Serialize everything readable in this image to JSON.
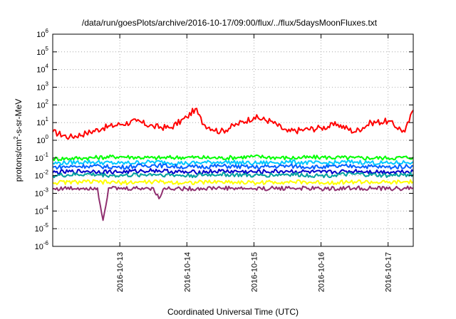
{
  "chart_data": {
    "type": "line",
    "title": "/data/run/goesPlots/archive/2016-10-17/09:00/flux/../flux/5daysMoonFluxes.txt",
    "xlabel": "Coordinated Universal Time (UTC)",
    "ylabel": {
      "base": "protons/cm",
      "sup": "2",
      "rest": "-s-sr-MeV"
    },
    "yscale": "log",
    "ylim": [
      1e-06,
      1000000.0
    ],
    "xlim": [
      "2016-10-12T00:00",
      "2016-10-17T09:00"
    ],
    "x_ticks": [
      "2016-10-13",
      "2016-10-14",
      "2016-10-15",
      "2016-10-16",
      "2016-10-17"
    ],
    "y_ticks": [
      {
        "base": "10",
        "exp": "-6",
        "value": 1e-06
      },
      {
        "base": "10",
        "exp": "-5",
        "value": 1e-05
      },
      {
        "base": "10",
        "exp": "-4",
        "value": 0.0001
      },
      {
        "base": "10",
        "exp": "-3",
        "value": 0.001
      },
      {
        "base": "10",
        "exp": "-2",
        "value": 0.01
      },
      {
        "base": "10",
        "exp": "-1",
        "value": 0.1
      },
      {
        "base": "10",
        "exp": "0",
        "value": 1
      },
      {
        "base": "10",
        "exp": "1",
        "value": 10
      },
      {
        "base": "10",
        "exp": "2",
        "value": 100
      },
      {
        "base": "10",
        "exp": "3",
        "value": 1000
      },
      {
        "base": "10",
        "exp": "4",
        "value": 10000
      },
      {
        "base": "10",
        "exp": "5",
        "value": 100000
      },
      {
        "base": "10",
        "exp": "6",
        "value": 1000000
      }
    ],
    "grid": "dashed",
    "legend": "none",
    "series": [
      {
        "color": "#ff0000",
        "x": [
          "2016-10-12T00:00",
          "2016-10-12T06:00",
          "2016-10-12T12:00",
          "2016-10-12T18:00",
          "2016-10-13T00:00",
          "2016-10-13T06:00",
          "2016-10-13T12:00",
          "2016-10-13T18:00",
          "2016-10-14T00:00",
          "2016-10-14T03:00",
          "2016-10-14T06:00",
          "2016-10-14T12:00",
          "2016-10-14T18:00",
          "2016-10-15T00:00",
          "2016-10-15T06:00",
          "2016-10-15T12:00",
          "2016-10-15T18:00",
          "2016-10-16T00:00",
          "2016-10-16T06:00",
          "2016-10-16T12:00",
          "2016-10-16T18:00",
          "2016-10-17T00:00",
          "2016-10-17T06:00",
          "2016-10-17T09:00"
        ],
        "y": [
          3,
          1.5,
          2.5,
          5,
          8,
          12,
          6,
          5,
          20,
          60,
          8,
          3,
          8,
          20,
          12,
          3,
          4,
          5,
          8,
          3,
          10,
          12,
          3,
          50
        ]
      },
      {
        "color": "#00ff00",
        "x": [
          "2016-10-12T00:00",
          "2016-10-12T12:00",
          "2016-10-13T00:00",
          "2016-10-13T12:00",
          "2016-10-14T00:00",
          "2016-10-14T12:00",
          "2016-10-15T00:00",
          "2016-10-15T12:00",
          "2016-10-16T00:00",
          "2016-10-16T12:00",
          "2016-10-17T00:00",
          "2016-10-17T09:00"
        ],
        "y": [
          0.09,
          0.1,
          0.12,
          0.1,
          0.11,
          0.1,
          0.12,
          0.1,
          0.11,
          0.1,
          0.1,
          0.11
        ]
      },
      {
        "color": "#00c8ff",
        "x": [
          "2016-10-12T00:00",
          "2016-10-12T12:00",
          "2016-10-13T00:00",
          "2016-10-13T12:00",
          "2016-10-14T00:00",
          "2016-10-14T12:00",
          "2016-10-15T00:00",
          "2016-10-15T12:00",
          "2016-10-16T00:00",
          "2016-10-16T12:00",
          "2016-10-17T00:00",
          "2016-10-17T09:00"
        ],
        "y": [
          0.05,
          0.06,
          0.05,
          0.06,
          0.05,
          0.06,
          0.05,
          0.06,
          0.05,
          0.06,
          0.05,
          0.06
        ]
      },
      {
        "color": "#0060ff",
        "x": [
          "2016-10-12T00:00",
          "2016-10-12T12:00",
          "2016-10-13T00:00",
          "2016-10-13T12:00",
          "2016-10-14T00:00",
          "2016-10-14T12:00",
          "2016-10-15T00:00",
          "2016-10-15T12:00",
          "2016-10-16T00:00",
          "2016-10-16T12:00",
          "2016-10-17T00:00",
          "2016-10-17T09:00"
        ],
        "y": [
          0.03,
          0.035,
          0.03,
          0.04,
          0.03,
          0.035,
          0.03,
          0.035,
          0.03,
          0.035,
          0.03,
          0.035
        ]
      },
      {
        "color": "#0000c8",
        "x": [
          "2016-10-12T00:00",
          "2016-10-12T12:00",
          "2016-10-13T00:00",
          "2016-10-13T12:00",
          "2016-10-14T00:00",
          "2016-10-14T12:00",
          "2016-10-15T00:00",
          "2016-10-15T12:00",
          "2016-10-16T00:00",
          "2016-10-16T12:00",
          "2016-10-17T00:00",
          "2016-10-17T09:00"
        ],
        "y": [
          0.015,
          0.018,
          0.016,
          0.02,
          0.015,
          0.018,
          0.016,
          0.018,
          0.015,
          0.018,
          0.016,
          0.018
        ]
      },
      {
        "color": "#00a0a0",
        "x": [
          "2016-10-12T00:00",
          "2016-10-12T12:00",
          "2016-10-13T00:00",
          "2016-10-13T12:00",
          "2016-10-14T00:00",
          "2016-10-14T12:00",
          "2016-10-15T00:00",
          "2016-10-15T12:00",
          "2016-10-16T00:00",
          "2016-10-16T12:00",
          "2016-10-17T00:00",
          "2016-10-17T09:00"
        ],
        "y": [
          0.01,
          0.012,
          0.01,
          0.012,
          0.01,
          0.012,
          0.01,
          0.012,
          0.01,
          0.012,
          0.01,
          0.012
        ]
      },
      {
        "color": "#ffff00",
        "x": [
          "2016-10-12T00:00",
          "2016-10-12T12:00",
          "2016-10-13T00:00",
          "2016-10-13T12:00",
          "2016-10-14T00:00",
          "2016-10-14T12:00",
          "2016-10-15T00:00",
          "2016-10-15T12:00",
          "2016-10-16T00:00",
          "2016-10-16T12:00",
          "2016-10-17T00:00",
          "2016-10-17T09:00"
        ],
        "y": [
          0.004,
          0.0045,
          0.004,
          0.0045,
          0.004,
          0.0045,
          0.004,
          0.0045,
          0.004,
          0.0045,
          0.004,
          0.0045
        ]
      },
      {
        "color": "#903070",
        "x": [
          "2016-10-12T00:00",
          "2016-10-12T12:00",
          "2016-10-12T16:00",
          "2016-10-12T18:00",
          "2016-10-12T20:00",
          "2016-10-13T00:00",
          "2016-10-13T12:00",
          "2016-10-13T14:00",
          "2016-10-13T16:00",
          "2016-10-14T00:00",
          "2016-10-14T12:00",
          "2016-10-15T00:00",
          "2016-10-15T12:00",
          "2016-10-16T00:00",
          "2016-10-16T12:00",
          "2016-10-17T00:00",
          "2016-10-17T09:00"
        ],
        "y": [
          0.0018,
          0.002,
          0.002,
          3e-05,
          0.002,
          0.0018,
          0.002,
          0.0005,
          0.002,
          0.0018,
          0.002,
          0.0018,
          0.002,
          0.0018,
          0.002,
          0.0018,
          0.002
        ]
      }
    ]
  }
}
